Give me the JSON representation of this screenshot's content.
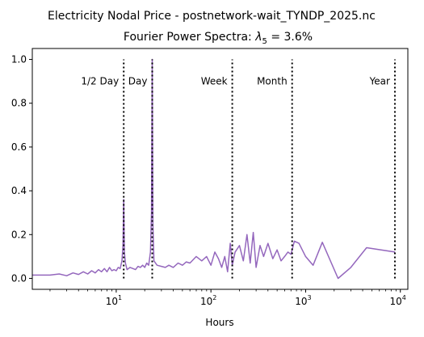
{
  "chart_data": {
    "type": "line",
    "title": "Electricity Nodal Price - postnetwork-wait_TYNDP_2025.nc",
    "subtitle_prefix": "Fourier Power Spectra: ",
    "subtitle_symbol": "λ",
    "subtitle_subscript": "5",
    "subtitle_suffix": " = 3.6%",
    "xlabel": "Hours",
    "ylabel": "",
    "xscale": "log",
    "xlim": [
      1.3,
      12000
    ],
    "ylim": [
      -0.05,
      1.05
    ],
    "x_ticks": [
      {
        "value": 10,
        "base": "10",
        "exp": "1"
      },
      {
        "value": 100,
        "base": "10",
        "exp": "2"
      },
      {
        "value": 1000,
        "base": "10",
        "exp": "3"
      },
      {
        "value": 10000,
        "base": "10",
        "exp": "4"
      }
    ],
    "y_ticks": [
      0.0,
      0.2,
      0.4,
      0.6,
      0.8,
      1.0
    ],
    "y_tick_labels": [
      "0.0",
      "0.2",
      "0.4",
      "0.6",
      "0.8",
      "1.0"
    ],
    "grid": false,
    "series": [
      {
        "color": "#9467bd",
        "x": [
          1.3,
          2.0,
          2.5,
          3.0,
          3.5,
          4.0,
          4.5,
          5.0,
          5.5,
          6.0,
          6.5,
          7.0,
          7.5,
          8.0,
          8.5,
          9.0,
          9.5,
          10.0,
          10.5,
          11.0,
          11.5,
          11.8,
          12.0,
          12.2,
          12.5,
          13.0,
          14.0,
          15.0,
          16.0,
          17.0,
          18.0,
          19.0,
          20.0,
          21.0,
          22.0,
          23.0,
          23.6,
          24.0,
          24.4,
          25.0,
          27.0,
          30.0,
          33.0,
          36.0,
          40.0,
          45.0,
          50.0,
          55.0,
          60.0,
          70.0,
          80.0,
          90.0,
          100.0,
          110.0,
          120.0,
          130.0,
          140.0,
          150.0,
          160.0,
          168.0,
          180.0,
          200.0,
          220.0,
          240.0,
          260.0,
          280.0,
          300.0,
          330.0,
          360.0,
          400.0,
          450.0,
          500.0,
          550.0,
          600.0,
          650.0,
          700.0,
          760.0,
          850.0,
          1000.0,
          1200.0,
          1500.0,
          2200.0,
          3000.0,
          4400.0,
          8800.0
        ],
        "values": [
          0.015,
          0.015,
          0.02,
          0.012,
          0.025,
          0.018,
          0.03,
          0.02,
          0.035,
          0.025,
          0.04,
          0.03,
          0.045,
          0.03,
          0.05,
          0.035,
          0.04,
          0.035,
          0.05,
          0.045,
          0.08,
          0.15,
          0.36,
          0.12,
          0.07,
          0.04,
          0.05,
          0.045,
          0.04,
          0.055,
          0.05,
          0.06,
          0.05,
          0.07,
          0.06,
          0.12,
          0.3,
          1.0,
          0.25,
          0.08,
          0.06,
          0.055,
          0.05,
          0.06,
          0.05,
          0.07,
          0.06,
          0.075,
          0.07,
          0.1,
          0.08,
          0.1,
          0.06,
          0.12,
          0.09,
          0.05,
          0.1,
          0.03,
          0.16,
          0.06,
          0.12,
          0.15,
          0.08,
          0.2,
          0.07,
          0.21,
          0.05,
          0.15,
          0.1,
          0.16,
          0.09,
          0.13,
          0.08,
          0.1,
          0.12,
          0.11,
          0.17,
          0.16,
          0.1,
          0.06,
          0.165,
          0.0,
          0.05,
          0.14,
          0.12
        ]
      }
    ],
    "annotations": [
      {
        "label": "1/2 Day",
        "x": 12,
        "anchor": "end"
      },
      {
        "label": "Day",
        "x": 24,
        "anchor": "end"
      },
      {
        "label": "Week",
        "x": 168,
        "anchor": "end"
      },
      {
        "label": "Month",
        "x": 720,
        "anchor": "end"
      },
      {
        "label": "Year",
        "x": 8760,
        "anchor": "end"
      }
    ],
    "annotation_y": 0.9,
    "vline_color": "#000000",
    "vline_style": "dotted"
  }
}
